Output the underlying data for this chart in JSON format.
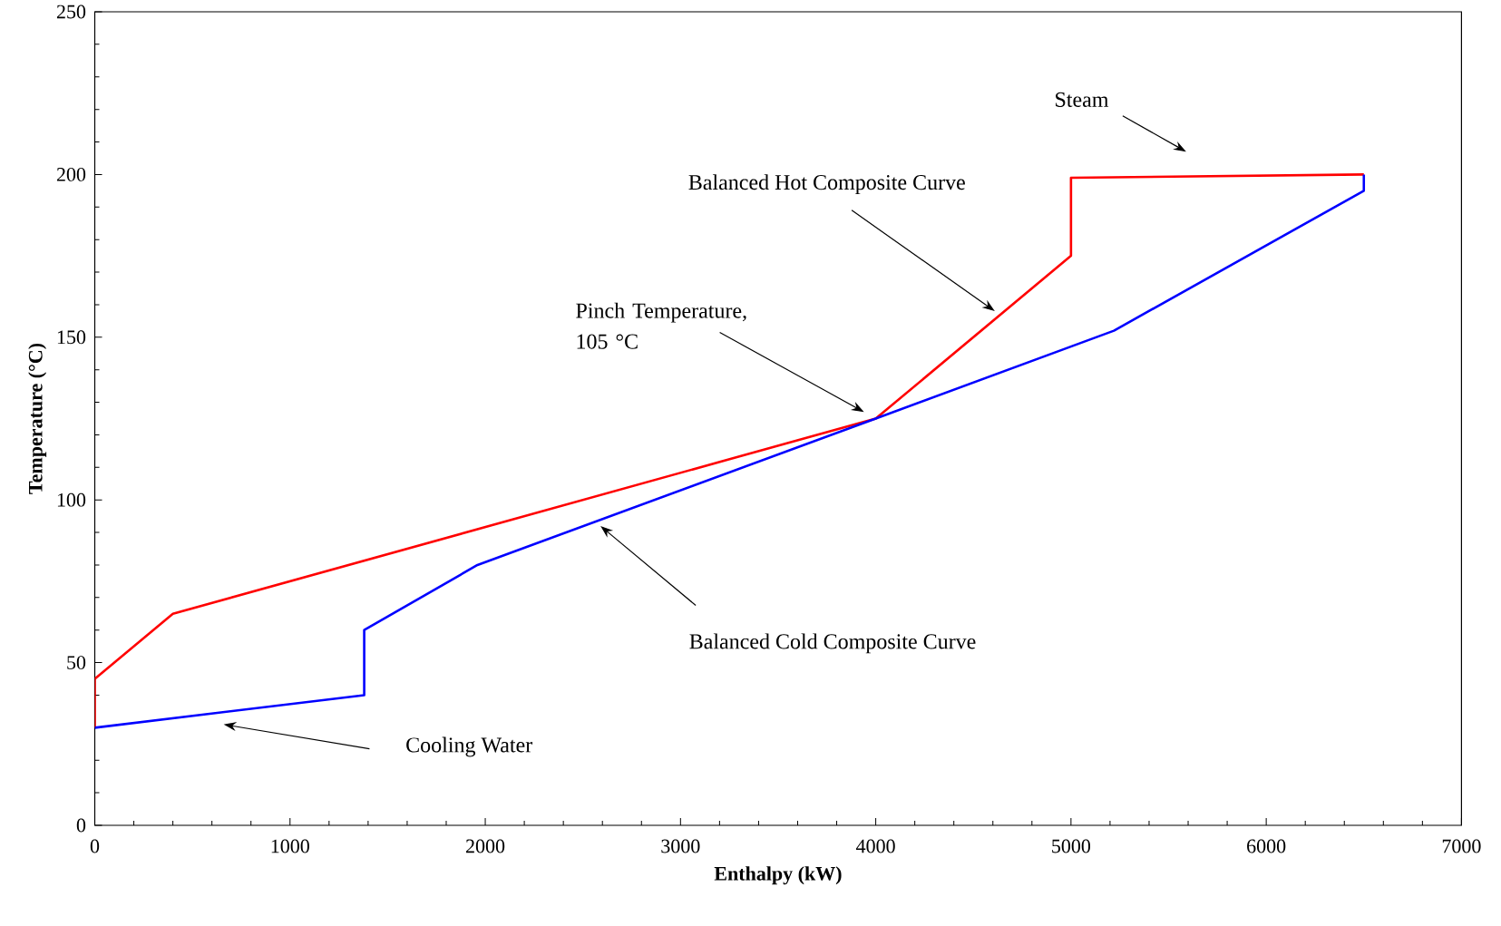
{
  "chart_data": {
    "type": "line",
    "xlabel": "Enthalpy (kW)",
    "ylabel": "Temperature (°C)",
    "xlim": [
      0,
      7000
    ],
    "ylim": [
      0,
      250
    ],
    "xticks": [
      0,
      1000,
      2000,
      3000,
      4000,
      5000,
      6000,
      7000
    ],
    "yticks": [
      0,
      50,
      100,
      150,
      200,
      250
    ],
    "series": [
      {
        "color": "#ff0000",
        "x": [
          0,
          0,
          400,
          4000,
          5000,
          5000,
          6500
        ],
        "values": [
          30,
          45,
          65,
          125,
          175,
          199,
          200
        ]
      },
      {
        "color": "#0000ff",
        "x": [
          0,
          1380,
          1380,
          1960,
          4000,
          5220,
          6500,
          6500
        ],
        "values": [
          30,
          40,
          60,
          80,
          125,
          152,
          195,
          200
        ]
      }
    ],
    "annotations": [
      "Steam",
      "Balanced Hot Composite Curve",
      "Pinch Temperature, 105 °C",
      "Balanced Cold Composite Curve",
      "Cooling Water"
    ],
    "grid": false,
    "marker": "none",
    "line_style": "solid"
  }
}
